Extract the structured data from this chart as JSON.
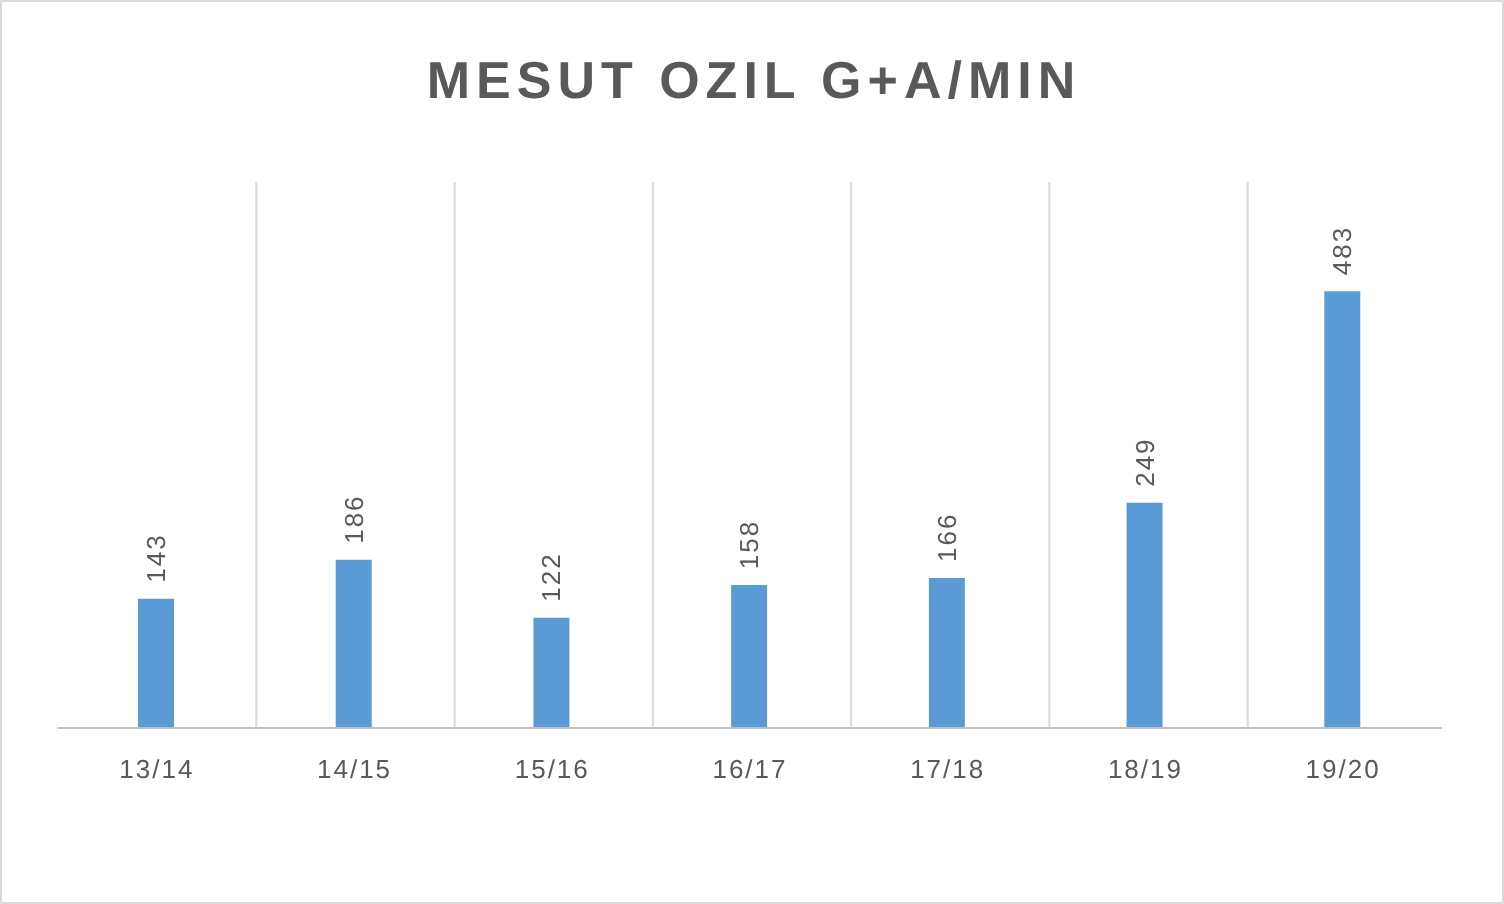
{
  "chart_data": {
    "type": "bar",
    "title": "MESUT OZIL G+A/MIN",
    "categories": [
      "13/14",
      "14/15",
      "15/16",
      "16/17",
      "17/18",
      "18/19",
      "19/20"
    ],
    "values": [
      143,
      186,
      122,
      158,
      166,
      249,
      483
    ],
    "color": "#5b9bd5",
    "data_labels": true,
    "grid": "x"
  }
}
